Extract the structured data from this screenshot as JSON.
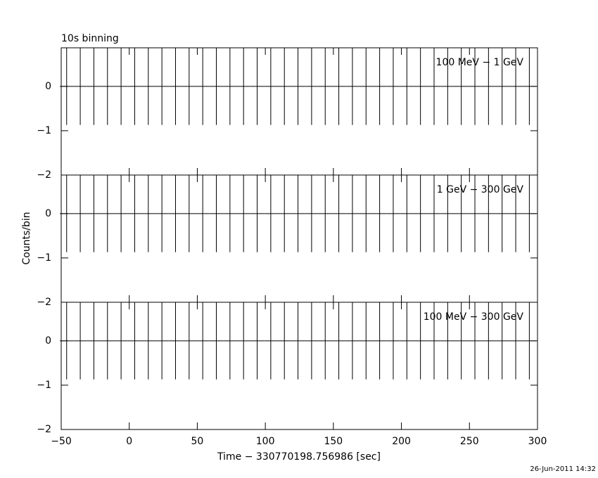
{
  "title": "10s binning",
  "ylabel": "Counts/bin",
  "xlabel": "Time − 330770198.756986 [sec]",
  "timestamp": "26-Jun-2011 14:32",
  "chart_data": [
    {
      "type": "errorbar",
      "annotation": "100 MeV − 1 GeV",
      "x": [
        -46,
        -36,
        -26,
        -16,
        -6,
        4,
        14,
        24,
        34,
        44,
        54,
        64,
        74,
        84,
        94,
        104,
        114,
        124,
        134,
        144,
        154,
        164,
        174,
        184,
        194,
        204,
        214,
        224,
        234,
        244,
        254,
        264,
        274,
        284,
        294
      ],
      "values": [
        0,
        0,
        0,
        0,
        0,
        0,
        0,
        0,
        0,
        0,
        0,
        0,
        0,
        0,
        0,
        0,
        0,
        0,
        0,
        0,
        0,
        0,
        0,
        0,
        0,
        0,
        0,
        0,
        0,
        0,
        0,
        0,
        0,
        0,
        0
      ],
      "errors": [
        0.87,
        0.87,
        0.87,
        0.87,
        0.87,
        0.87,
        0.87,
        0.87,
        0.87,
        0.87,
        0.87,
        0.87,
        0.87,
        0.87,
        0.87,
        0.87,
        0.87,
        0.87,
        0.87,
        0.87,
        0.87,
        0.87,
        0.87,
        0.87,
        0.87,
        0.87,
        0.87,
        0.87,
        0.87,
        0.87,
        0.87,
        0.87,
        0.87,
        0.87,
        0.87
      ],
      "xlim": [
        -50,
        300
      ],
      "ylim": [
        -2,
        0.87
      ],
      "yticks": [
        {
          "value": -2,
          "label": "−2"
        },
        {
          "value": -1,
          "label": "−1"
        },
        0
      ]
    },
    {
      "type": "errorbar",
      "annotation": "1 GeV − 300 GeV",
      "x": [
        -46,
        -36,
        -26,
        -16,
        -6,
        4,
        14,
        24,
        34,
        44,
        54,
        64,
        74,
        84,
        94,
        104,
        114,
        124,
        134,
        144,
        154,
        164,
        174,
        184,
        194,
        204,
        214,
        224,
        234,
        244,
        254,
        264,
        274,
        284,
        294
      ],
      "values": [
        0,
        0,
        0,
        0,
        0,
        0,
        0,
        0,
        0,
        0,
        0,
        0,
        0,
        0,
        0,
        0,
        0,
        0,
        0,
        0,
        0,
        0,
        0,
        0,
        0,
        0,
        0,
        0,
        0,
        0,
        0,
        0,
        0,
        0,
        0
      ],
      "errors": [
        0.87,
        0.87,
        0.87,
        0.87,
        0.87,
        0.87,
        0.87,
        0.87,
        0.87,
        0.87,
        0.87,
        0.87,
        0.87,
        0.87,
        0.87,
        0.87,
        0.87,
        0.87,
        0.87,
        0.87,
        0.87,
        0.87,
        0.87,
        0.87,
        0.87,
        0.87,
        0.87,
        0.87,
        0.87,
        0.87,
        0.87,
        0.87,
        0.87,
        0.87,
        0.87
      ],
      "xlim": [
        -50,
        300
      ],
      "ylim": [
        -2,
        0.87
      ],
      "yticks": [
        {
          "value": -2,
          "label": "−2"
        },
        {
          "value": -1,
          "label": "−1"
        },
        0
      ]
    },
    {
      "type": "errorbar",
      "annotation": "100 MeV − 300 GeV",
      "x": [
        -46,
        -36,
        -26,
        -16,
        -6,
        4,
        14,
        24,
        34,
        44,
        54,
        64,
        74,
        84,
        94,
        104,
        114,
        124,
        134,
        144,
        154,
        164,
        174,
        184,
        194,
        204,
        214,
        224,
        234,
        244,
        254,
        264,
        274,
        284,
        294
      ],
      "values": [
        0,
        0,
        0,
        0,
        0,
        0,
        0,
        0,
        0,
        0,
        0,
        0,
        0,
        0,
        0,
        0,
        0,
        0,
        0,
        0,
        0,
        0,
        0,
        0,
        0,
        0,
        0,
        0,
        0,
        0,
        0,
        0,
        0,
        0,
        0
      ],
      "errors": [
        0.87,
        0.87,
        0.87,
        0.87,
        0.87,
        0.87,
        0.87,
        0.87,
        0.87,
        0.87,
        0.87,
        0.87,
        0.87,
        0.87,
        0.87,
        0.87,
        0.87,
        0.87,
        0.87,
        0.87,
        0.87,
        0.87,
        0.87,
        0.87,
        0.87,
        0.87,
        0.87,
        0.87,
        0.87,
        0.87,
        0.87,
        0.87,
        0.87,
        0.87,
        0.87
      ],
      "xlim": [
        -50,
        300
      ],
      "ylim": [
        -2,
        0.87
      ],
      "yticks": [
        {
          "value": -2,
          "label": "−2"
        },
        {
          "value": -1,
          "label": "−1"
        },
        0
      ],
      "xticks": [
        {
          "value": -50,
          "label": "−50"
        },
        0,
        50,
        100,
        150,
        200,
        250,
        300
      ]
    }
  ]
}
